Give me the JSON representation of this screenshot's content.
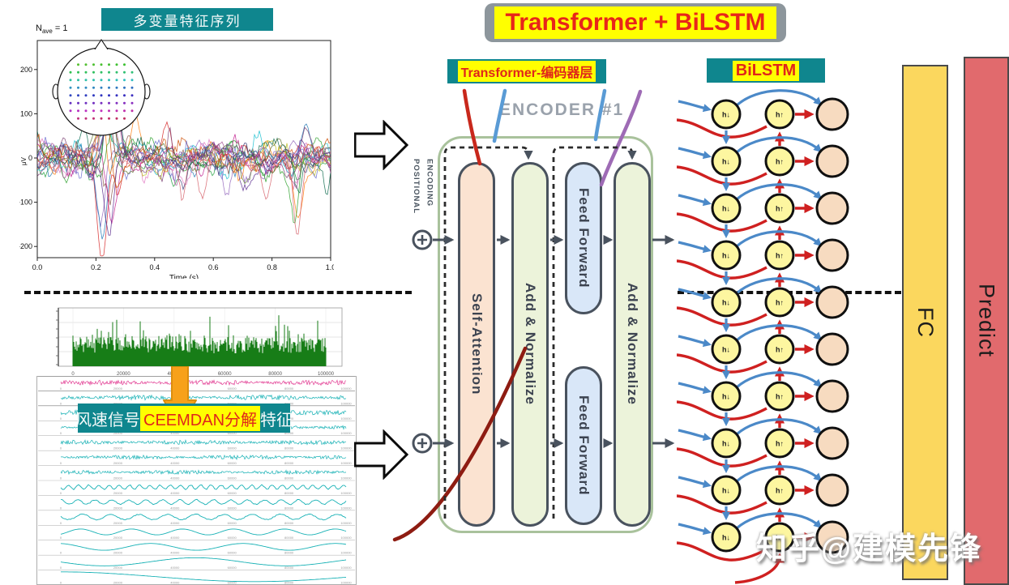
{
  "title": "Transformer + BiLSTM",
  "left_top_panel": {
    "label": "多变量特征序列",
    "annotation": {
      "base": "N",
      "sub": "ave",
      "rest": " = 1"
    }
  },
  "left_bottom_panel": {
    "label_parts": {
      "pre": "风速信号",
      "highlight": "CEEMDAN分解",
      "post": "特征"
    }
  },
  "encoder": {
    "section_label": "Transformer-编码器层",
    "encoder_title": "ENCODER #1",
    "positional_encoding_line1": "POSITIONAL",
    "positional_encoding_line2": "ENCODING",
    "blocks": {
      "self_attention": "Self-Attention",
      "add_normalize_1": "Add & Normalize",
      "feed_forward": "Feed Forward",
      "add_normalize_2": "Add & Normalize"
    }
  },
  "bilstm": {
    "section_label": "BiLSTM",
    "rows": 10,
    "forward_cell_glyph": "h↓",
    "backward_cell_glyph": "h↑",
    "colors": {
      "cell_fill": "#fdf6a0",
      "output_fill": "#f7dbc0",
      "forward_arrow": "#4b89c8",
      "backward_arrow": "#cf2020"
    }
  },
  "output_layers": {
    "fc_label": "FC",
    "predict_label": "Predict",
    "fc_color": "#fbd75e",
    "predict_color": "#e16a6d"
  },
  "watermark": "知乎@建模先锋",
  "colors": {
    "teal_label_bg": "#0f868e",
    "highlight_yellow": "#ffff00",
    "label_red": "#e0251b",
    "title_bg_gray": "#8d969c"
  },
  "chart_data": [
    {
      "id": "multivariate-eeg-features",
      "type": "line",
      "title": "多变量特征序列",
      "xlabel": "Time (s)",
      "ylabel": "μV",
      "xticks": [
        "0.0",
        "0.2",
        "0.4",
        "0.6",
        "0.8",
        "1.0"
      ],
      "yticks": [
        "200",
        "100",
        "0",
        "-100",
        "-200"
      ],
      "xlim": [
        0.0,
        1.0
      ],
      "ylim": [
        -225,
        270
      ],
      "annotation": "N_ave = 1",
      "n_series": 20,
      "legend": "none",
      "grid": false,
      "description": "Many overlapping multicolored EEG channel traces with a scalp electrode-topography inset in the upper left"
    },
    {
      "id": "wind-speed-signal",
      "type": "area",
      "xticks": [
        "0",
        "20000",
        "40000",
        "60000",
        "80000",
        "100000"
      ],
      "color": "#177d17",
      "grid": true,
      "description": "Dense raw wind-speed time series filled in green"
    },
    {
      "id": "ceemdan-decomposition",
      "type": "line",
      "n_components": 14,
      "xticks": [
        "0",
        "20000",
        "40000",
        "60000",
        "80000",
        "100000"
      ],
      "component_color_first": "#e23a92",
      "component_color_rest": "#17b1b5",
      "description": "Stacked CEEMDAN IMF component subplots, frequency decreasing from top (noise-like) to bottom (slow trends)"
    }
  ]
}
